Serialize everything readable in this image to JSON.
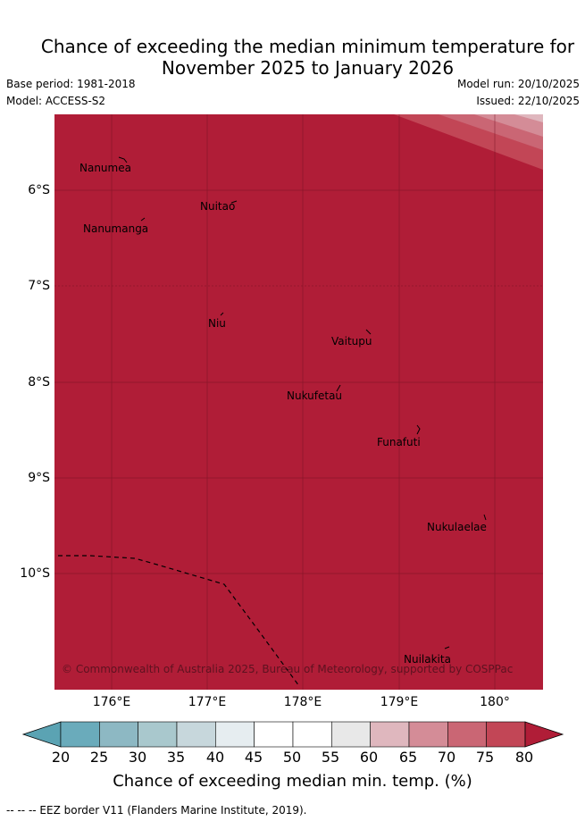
{
  "title": {
    "line1": "Chance of exceeding the median minimum temperature for",
    "line2": "November 2025 to January 2026"
  },
  "meta": {
    "base_period": "Base period: 1981-2018",
    "model": "Model: ACCESS-S2",
    "model_run": "Model run: 20/10/2025",
    "issued": "Issued: 22/10/2025"
  },
  "map": {
    "fill_color": "#b01d37",
    "latitude_labels": [
      "6°S",
      "7°S",
      "8°S",
      "9°S",
      "10°S"
    ],
    "longitude_labels": [
      "176°E",
      "177°E",
      "178°E",
      "179°E",
      "180°"
    ],
    "places": [
      "Nanumea",
      "Nuitao",
      "Nanumanga",
      "Niu",
      "Vaitupu",
      "Nukufetau",
      "Funafuti",
      "Nukulaelae",
      "Nuilakita"
    ],
    "copyright": "© Commonwealth of Australia 2025, Bureau of Meteorology, supported by COSPPac"
  },
  "colorbar": {
    "ticks": [
      "20",
      "25",
      "30",
      "35",
      "40",
      "45",
      "50",
      "55",
      "60",
      "65",
      "70",
      "75",
      "80"
    ],
    "colors": [
      "#6aabbb",
      "#8db8c3",
      "#a9c8cd",
      "#c7d7dc",
      "#e6edf0",
      "#ffffff",
      "#ffffff",
      "#e8e8e8",
      "#dfb7be",
      "#d48c97",
      "#ca6674",
      "#c24656"
    ],
    "low_color": "#5ba3b3",
    "high_color": "#b01d37",
    "title": "Chance of exceeding median min. temp. (%)"
  },
  "footnote": "-- -- -- EEZ border V11 (Flanders Marine Institute, 2019)."
}
